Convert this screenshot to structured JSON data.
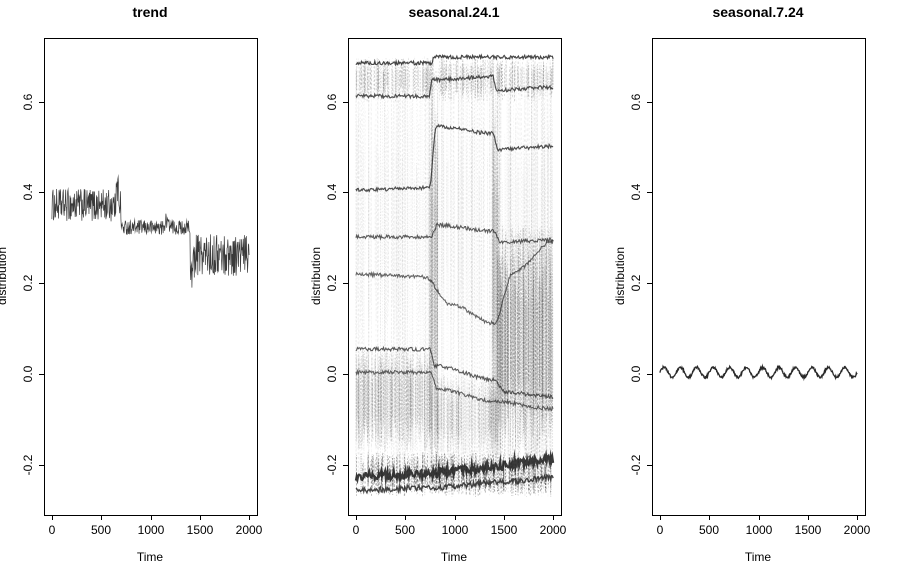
{
  "figure": {
    "background_color": "#ffffff",
    "text_color": "#000000",
    "axis_color": "#000000"
  },
  "chart_data": [
    {
      "type": "line",
      "title": "trend",
      "xlabel": "Time",
      "ylabel": "distribution",
      "xlim": [
        -80,
        2080
      ],
      "ylim": [
        -0.31,
        0.74
      ],
      "grid": false,
      "xticks": {
        "values": [
          0,
          500,
          1000,
          1500,
          2000
        ],
        "labels": [
          "0",
          "500",
          "1000",
          "1500",
          "2000"
        ]
      },
      "yticks": {
        "values": [
          -0.2,
          0.0,
          0.2,
          0.4,
          0.6
        ],
        "labels": [
          "-0.2",
          "0.0",
          "0.2",
          "0.4",
          "0.6"
        ]
      },
      "render": {
        "noisy_line": {
          "color": "#2f2f2f",
          "step": 4,
          "segments": [
            {
              "from": 0,
              "to": 700,
              "mean": 0.372,
              "amp": 0.036
            },
            {
              "from": 700,
              "to": 1400,
              "mean": 0.323,
              "amp": 0.016
            },
            {
              "from": 1400,
              "to": 2000,
              "mean": 0.262,
              "amp": 0.046
            }
          ],
          "spikes": [
            {
              "x": 665,
              "h": 0.06
            },
            {
              "x": 1165,
              "h": 0.035
            },
            {
              "x": 1420,
              "h": -0.06
            }
          ]
        }
      }
    },
    {
      "type": "line",
      "title": "seasonal.24.1",
      "xlabel": "Time",
      "ylabel": "distribution",
      "xlim": [
        -80,
        2080
      ],
      "ylim": [
        -0.31,
        0.74
      ],
      "grid": false,
      "xticks": {
        "values": [
          0,
          500,
          1000,
          1500,
          2000
        ],
        "labels": [
          "0",
          "500",
          "1000",
          "1500",
          "2000"
        ]
      },
      "yticks": {
        "values": [
          -0.2,
          0.0,
          0.2,
          0.4,
          0.6
        ],
        "labels": [
          "-0.2",
          "0.0",
          "0.2",
          "0.4",
          "0.6"
        ]
      },
      "render": {
        "vlines": {
          "count": 170,
          "y_top": 0.7,
          "y_bot": -0.27,
          "alpha_min": 0.04,
          "alpha_max": 0.16,
          "color": "#666666"
        },
        "dense": [
          {
            "x0": 0,
            "x1": 2000,
            "y0": -0.27,
            "y1": -0.17,
            "count": 340,
            "alpha": 0.5,
            "color": "#1c1c1c"
          },
          {
            "x0": 0,
            "x1": 760,
            "y0": -0.17,
            "y1": 0.06,
            "count": 270,
            "alpha": 0.22,
            "color": "#3a3a3a"
          },
          {
            "x0": 760,
            "x1": 1430,
            "y0": -0.18,
            "y1": 0.0,
            "count": 210,
            "alpha": 0.18,
            "color": "#3a3a3a"
          },
          {
            "x0": 1430,
            "x1": 2000,
            "y0": -0.19,
            "y1": 0.33,
            "count": 280,
            "alpha": 0.26,
            "color": "#2e2e2e"
          },
          {
            "x0": 0,
            "x1": 2000,
            "y0": 0.6,
            "y1": 0.7,
            "count": 320,
            "alpha": 0.28,
            "color": "#2e2e2e"
          },
          {
            "x0": 0,
            "x1": 2000,
            "y0": 0.06,
            "y1": 0.6,
            "count": 170,
            "alpha": 0.1,
            "color": "#555555"
          },
          {
            "x0": 740,
            "x1": 830,
            "y0": -0.25,
            "y1": 0.69,
            "count": 60,
            "alpha": 0.18,
            "color": "#333333"
          },
          {
            "x0": 1380,
            "x1": 1460,
            "y0": -0.22,
            "y1": 0.69,
            "count": 50,
            "alpha": 0.16,
            "color": "#333333"
          }
        ],
        "curves": [
          {
            "pts": [
              [
                0,
                0.685
              ],
              [
                760,
                0.685
              ],
              [
                800,
                0.698
              ],
              [
                2000,
                0.698
              ]
            ],
            "w": 1.2,
            "alpha": 0.85,
            "jitter": 0.004
          },
          {
            "pts": [
              [
                0,
                0.612
              ],
              [
                740,
                0.612
              ],
              [
                775,
                0.648
              ],
              [
                1390,
                0.655
              ],
              [
                1425,
                0.625
              ],
              [
                2000,
                0.632
              ]
            ],
            "w": 1.2,
            "alpha": 0.8,
            "jitter": 0.004
          },
          {
            "pts": [
              [
                0,
                0.405
              ],
              [
                745,
                0.41
              ],
              [
                815,
                0.545
              ],
              [
                1395,
                0.53
              ],
              [
                1435,
                0.495
              ],
              [
                2000,
                0.502
              ]
            ],
            "w": 1.2,
            "alpha": 0.8,
            "jitter": 0.004
          },
          {
            "pts": [
              [
                0,
                0.302
              ],
              [
                760,
                0.302
              ],
              [
                825,
                0.328
              ],
              [
                1400,
                0.315
              ],
              [
                1465,
                0.29
              ],
              [
                2000,
                0.296
              ]
            ],
            "w": 1.1,
            "alpha": 0.75,
            "jitter": 0.004
          },
          {
            "pts": [
              [
                0,
                0.22
              ],
              [
                700,
                0.214
              ],
              [
                950,
                0.155
              ],
              [
                1400,
                0.112
              ],
              [
                1600,
                0.225
              ],
              [
                2000,
                0.292
              ]
            ],
            "w": 1.1,
            "alpha": 0.7,
            "jitter": 0.004
          },
          {
            "pts": [
              [
                0,
                0.055
              ],
              [
                750,
                0.055
              ],
              [
                805,
                0.018
              ],
              [
                1400,
                -0.012
              ],
              [
                1520,
                -0.04
              ],
              [
                2000,
                -0.05
              ]
            ],
            "w": 1.1,
            "alpha": 0.75,
            "jitter": 0.004
          },
          {
            "pts": [
              [
                0,
                0.004
              ],
              [
                760,
                0.004
              ],
              [
                825,
                -0.032
              ],
              [
                1400,
                -0.06
              ],
              [
                2000,
                -0.076
              ]
            ],
            "w": 1.1,
            "alpha": 0.7,
            "jitter": 0.004
          },
          {
            "pts": [
              [
                0,
                -0.225
              ],
              [
                600,
                -0.221
              ],
              [
                1200,
                -0.209
              ],
              [
                1700,
                -0.196
              ],
              [
                2000,
                -0.186
              ]
            ],
            "w": 2.2,
            "alpha": 0.9,
            "jitter": 0.01
          },
          {
            "pts": [
              [
                0,
                -0.256
              ],
              [
                800,
                -0.249
              ],
              [
                1600,
                -0.236
              ],
              [
                2000,
                -0.227
              ]
            ],
            "w": 1.4,
            "alpha": 0.85,
            "jitter": 0.006
          }
        ]
      }
    },
    {
      "type": "line",
      "title": "seasonal.7.24",
      "xlabel": "Time",
      "ylabel": "distribution",
      "xlim": [
        -80,
        2080
      ],
      "ylim": [
        -0.31,
        0.74
      ],
      "grid": false,
      "xticks": {
        "values": [
          0,
          500,
          1000,
          1500,
          2000
        ],
        "labels": [
          "0",
          "500",
          "1000",
          "1500",
          "2000"
        ]
      },
      "yticks": {
        "values": [
          -0.2,
          0.0,
          0.2,
          0.4,
          0.6
        ],
        "labels": [
          "-0.2",
          "0.0",
          "0.2",
          "0.4",
          "0.6"
        ]
      },
      "render": {
        "sine": {
          "base": 0.004,
          "amp": 0.011,
          "cycles": 12,
          "noise": 0.0025,
          "color": "#1e1e1e",
          "width": 1.3,
          "step": 4
        }
      }
    }
  ]
}
